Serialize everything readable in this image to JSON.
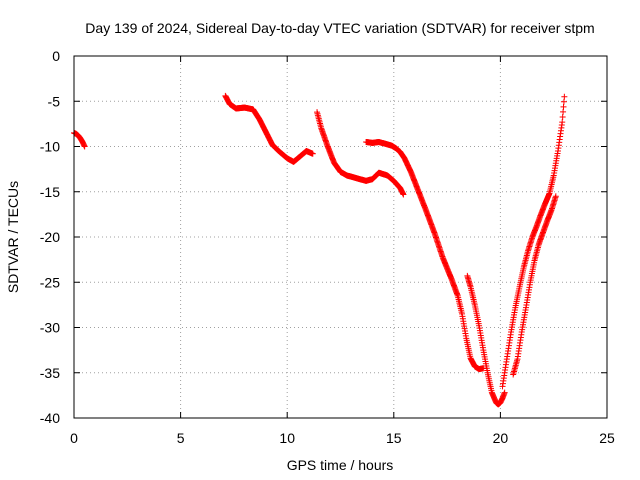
{
  "chart_data": {
    "type": "scatter",
    "title": "Day 139 of 2024, Sidereal Day-to-day VTEC variation (SDTVAR) for receiver stpm",
    "xlabel": "GPS time / hours",
    "ylabel": "SDTVAR / TECUs",
    "xlim": [
      0,
      25
    ],
    "ylim": [
      -40,
      0
    ],
    "xticks": [
      0,
      5,
      10,
      15,
      20,
      25
    ],
    "yticks": [
      0,
      -5,
      -10,
      -15,
      -20,
      -25,
      -30,
      -35,
      -40
    ],
    "grid": true,
    "marker": "+",
    "color": "#ff0000",
    "series": [
      {
        "name": "segment-1",
        "x": [
          0.0,
          0.1,
          0.2,
          0.3,
          0.4,
          0.5
        ],
        "y": [
          -8.5,
          -8.6,
          -8.8,
          -9.1,
          -9.5,
          -10.0
        ]
      },
      {
        "name": "segment-2",
        "x": [
          7.1,
          7.3,
          7.6,
          8.0,
          8.4,
          8.7,
          9.0,
          9.3,
          9.6,
          10.0,
          10.3,
          10.6,
          10.9,
          11.2
        ],
        "y": [
          -4.4,
          -5.3,
          -5.8,
          -5.7,
          -5.9,
          -7.0,
          -8.4,
          -9.8,
          -10.5,
          -11.3,
          -11.7,
          -11.1,
          -10.5,
          -10.8
        ]
      },
      {
        "name": "segment-3",
        "x": [
          11.4,
          11.6,
          11.9,
          12.2,
          12.5,
          12.8,
          13.1,
          13.4,
          13.7,
          14.0,
          14.3,
          14.7,
          15.0,
          15.3,
          15.45
        ],
        "y": [
          -6.2,
          -8.0,
          -10.0,
          -11.8,
          -12.8,
          -13.2,
          -13.4,
          -13.6,
          -13.8,
          -13.6,
          -12.9,
          -13.2,
          -13.8,
          -14.6,
          -15.3
        ]
      },
      {
        "name": "segment-4",
        "x": [
          13.7,
          14.0,
          14.3,
          14.6,
          14.9,
          15.1,
          15.3,
          15.5,
          15.8,
          16.1,
          16.5,
          16.9,
          17.3,
          17.7,
          18.0,
          18.2,
          18.4,
          18.6,
          18.8,
          19.0,
          19.2
        ],
        "y": [
          -9.5,
          -9.6,
          -9.5,
          -9.7,
          -9.9,
          -10.2,
          -10.6,
          -11.3,
          -12.8,
          -14.6,
          -17.0,
          -19.5,
          -22.3,
          -24.6,
          -26.5,
          -28.5,
          -31.2,
          -33.4,
          -34.3,
          -34.6,
          -34.5
        ]
      },
      {
        "name": "segment-5",
        "x": [
          18.45,
          18.6,
          18.8,
          19.0,
          19.2,
          19.4,
          19.6,
          19.8,
          19.9,
          20.0,
          20.1,
          20.2
        ],
        "y": [
          -24.3,
          -25.5,
          -27.5,
          -29.8,
          -32.5,
          -35.0,
          -37.2,
          -38.3,
          -38.5,
          -38.3,
          -37.8,
          -37.2
        ]
      },
      {
        "name": "segment-6",
        "x": [
          20.1,
          20.3,
          20.5,
          20.7,
          20.9,
          21.1,
          21.3,
          21.5,
          21.7,
          21.9,
          22.1,
          22.3,
          22.5,
          22.7,
          22.9,
          23.0
        ],
        "y": [
          -36.5,
          -33.5,
          -30.5,
          -27.8,
          -25.5,
          -23.3,
          -21.5,
          -20.0,
          -18.8,
          -17.5,
          -16.3,
          -15.2,
          -13.2,
          -10.5,
          -7.3,
          -4.5
        ]
      },
      {
        "name": "segment-7",
        "x": [
          20.6,
          20.8,
          21.0,
          21.2,
          21.4,
          21.6,
          21.8,
          22.0,
          22.2,
          22.4,
          22.6
        ],
        "y": [
          -35.2,
          -33.5,
          -30.5,
          -27.8,
          -25.0,
          -22.6,
          -20.8,
          -19.5,
          -18.2,
          -17.0,
          -15.5
        ]
      }
    ]
  }
}
